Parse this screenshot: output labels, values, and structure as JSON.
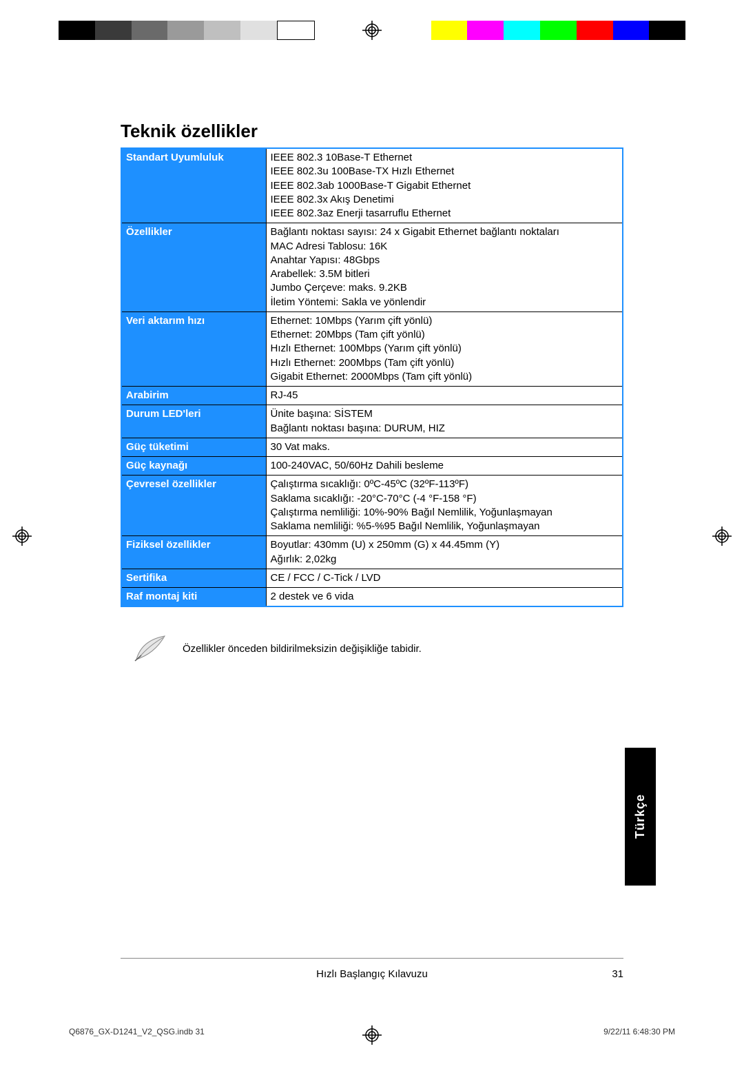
{
  "colorbar": {
    "colors_left": [
      "#000000",
      "#3a3a3a",
      "#6a6a6a",
      "#9a9a9a",
      "#bfbfbf",
      "#e0e0e0",
      "#ffffff"
    ],
    "colors_right": [
      "#ffff00",
      "#ff00ff",
      "#00ffff",
      "#00ff00",
      "#ff0000",
      "#0000ff",
      "#000000"
    ]
  },
  "title": "Teknik özellikler",
  "table": [
    {
      "label": "Standart Uyumluluk",
      "value": "IEEE 802.3 10Base-T Ethernet\nIEEE 802.3u 100Base-TX Hızlı Ethernet\nIEEE 802.3ab 1000Base-T Gigabit Ethernet\nIEEE 802.3x Akış Denetimi\nIEEE 802.3az Enerji tasarruflu Ethernet"
    },
    {
      "label": "Özellikler",
      "value": "Bağlantı noktası sayısı: 24 x Gigabit Ethernet bağlantı noktaları\nMAC Adresi Tablosu: 16K\nAnahtar Yapısı: 48Gbps\nArabellek: 3.5M bitleri\nJumbo Çerçeve: maks. 9.2KB\nİletim Yöntemi: Sakla ve yönlendir"
    },
    {
      "label": "Veri aktarım hızı",
      "value": "Ethernet: 10Mbps (Yarım çift yönlü)\nEthernet: 20Mbps (Tam çift yönlü)\nHızlı Ethernet: 100Mbps (Yarım çift yönlü)\nHızlı Ethernet: 200Mbps (Tam çift yönlü)\nGigabit Ethernet: 2000Mbps (Tam çift yönlü)"
    },
    {
      "label": "Arabirim",
      "value": "RJ-45"
    },
    {
      "label": "Durum LED'leri",
      "value": "Ünite başına: SİSTEM\nBağlantı noktası başına: DURUM, HIZ"
    },
    {
      "label": "Güç tüketimi",
      "value": "30 Vat maks."
    },
    {
      "label": "Güç kaynağı",
      "value": "100-240VAC, 50/60Hz Dahili besleme"
    },
    {
      "label": "Çevresel özellikler",
      "value": "Çalıştırma sıcaklığı: 0ºC-45ºC (32ºF-113ºF)\nSaklama sıcaklığı: -20°C-70°C (-4 °F-158 °F)\nÇalıştırma nemliliği: 10%-90% Bağıl Nemlilik, Yoğunlaşmayan\nSaklama nemliliği: %5-%95 Bağıl Nemlilik, Yoğunlaşmayan"
    },
    {
      "label": "Fiziksel özellikler",
      "value": "Boyutlar: 430mm (U) x 250mm (G) x 44.45mm (Y)\nAğırlık: 2,02kg"
    },
    {
      "label": "Sertifika",
      "value": "CE / FCC / C-Tick / LVD"
    },
    {
      "label": "Raf montaj kiti",
      "value": "2 destek ve 6 vida"
    }
  ],
  "note": "Özellikler önceden bildirilmeksizin değişikliğe tabidir.",
  "lang_tab": "Türkçe",
  "footer_center": "Hızlı Başlangıç Kılavuzu",
  "footer_page": "31",
  "print_file": "Q6876_GX-D1241_V2_QSG.indb   31",
  "print_time": "9/22/11   6:48:30 PM"
}
